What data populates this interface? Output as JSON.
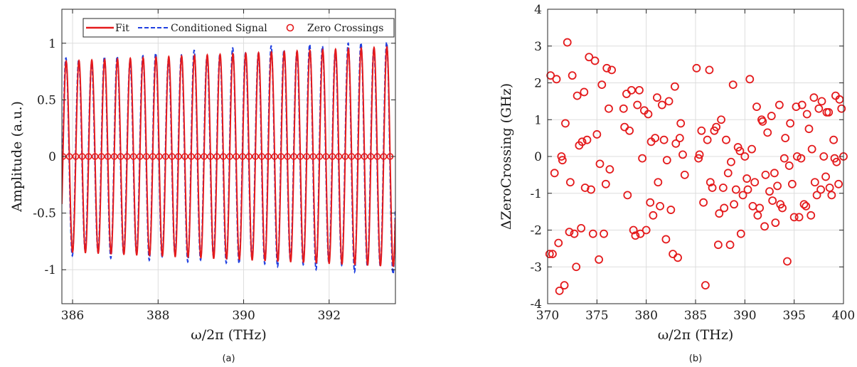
{
  "colors": {
    "fit": "#e41a1c",
    "signal": "#1f3fe0",
    "crossings": "#e41a1c",
    "grid": "#dddddd",
    "axis": "#262626"
  },
  "chart_data": [
    {
      "type": "line",
      "caption": "(a)",
      "xlabel": "ω/2π (THz)",
      "ylabel": "Amplitude (a.u.)",
      "xlim": [
        385.75,
        393.55
      ],
      "ylim": [
        -1.3,
        1.3
      ],
      "xticks": [
        386,
        388,
        390,
        392
      ],
      "xtick_labels": [
        "386",
        "388",
        "390",
        "392"
      ],
      "yticks": [
        -1,
        -0.5,
        0,
        0.5,
        1
      ],
      "ytick_labels": [
        "-1",
        "-0.5",
        "0",
        "0.5",
        "1"
      ],
      "grid": true,
      "legend_position": "top-right",
      "oscillation_period_THz": 0.3,
      "series": [
        {
          "name": "Fit",
          "style": "solid",
          "amplitude_start": 0.84,
          "amplitude_end": 0.97
        },
        {
          "name": "Conditioned Signal",
          "style": "dashed",
          "amplitude_start": 0.84,
          "amplitude_end": 1.0
        },
        {
          "name": "Zero Crossings",
          "style": "markers",
          "y": 0,
          "spacing_THz": 0.15
        }
      ]
    },
    {
      "type": "scatter",
      "caption": "(b)",
      "xlabel": "ω/2π (THz)",
      "ylabel": "ΔZeroCrossing  (GHz)",
      "xlim": [
        370,
        400
      ],
      "ylim": [
        -4,
        4
      ],
      "xticks": [
        370,
        375,
        380,
        385,
        390,
        395,
        400
      ],
      "xtick_labels": [
        "370",
        "375",
        "380",
        "385",
        "390",
        "395",
        "400"
      ],
      "yticks": [
        -4,
        -3,
        -2,
        -1,
        0,
        1,
        2,
        3,
        4
      ],
      "ytick_labels": [
        "-4",
        "-3",
        "-2",
        "-1",
        "0",
        "1",
        "2",
        "3",
        "4"
      ],
      "grid": true,
      "points": [
        [
          370.2,
          -2.65
        ],
        [
          370.3,
          2.2
        ],
        [
          370.5,
          -2.65
        ],
        [
          370.7,
          -0.45
        ],
        [
          370.9,
          2.1
        ],
        [
          371.1,
          -2.35
        ],
        [
          371.2,
          -3.65
        ],
        [
          371.4,
          0.0
        ],
        [
          371.5,
          -0.1
        ],
        [
          371.7,
          -3.5
        ],
        [
          371.8,
          0.9
        ],
        [
          372.0,
          3.1
        ],
        [
          372.2,
          -2.05
        ],
        [
          372.3,
          -0.7
        ],
        [
          372.5,
          2.2
        ],
        [
          372.7,
          -2.1
        ],
        [
          372.9,
          -3.0
        ],
        [
          373.0,
          1.65
        ],
        [
          373.2,
          0.3
        ],
        [
          373.4,
          -1.95
        ],
        [
          373.5,
          0.4
        ],
        [
          373.7,
          1.75
        ],
        [
          373.8,
          -0.85
        ],
        [
          374.0,
          0.45
        ],
        [
          374.2,
          2.7
        ],
        [
          374.4,
          -0.9
        ],
        [
          374.6,
          -2.1
        ],
        [
          374.8,
          2.6
        ],
        [
          375.0,
          0.6
        ],
        [
          375.2,
          -2.8
        ],
        [
          375.3,
          -0.2
        ],
        [
          375.5,
          1.95
        ],
        [
          375.7,
          -2.1
        ],
        [
          375.9,
          -0.75
        ],
        [
          376.0,
          2.4
        ],
        [
          376.2,
          1.3
        ],
        [
          376.3,
          -0.35
        ],
        [
          376.5,
          2.35
        ],
        [
          377.7,
          1.3
        ],
        [
          377.8,
          0.8
        ],
        [
          378.0,
          1.7
        ],
        [
          378.1,
          -1.05
        ],
        [
          378.3,
          0.7
        ],
        [
          378.5,
          1.8
        ],
        [
          378.7,
          -2.0
        ],
        [
          378.9,
          -2.15
        ],
        [
          379.1,
          1.4
        ],
        [
          379.3,
          1.8
        ],
        [
          379.4,
          -2.1
        ],
        [
          379.6,
          -0.05
        ],
        [
          379.8,
          1.25
        ],
        [
          380.0,
          -2.0
        ],
        [
          380.2,
          1.15
        ],
        [
          380.4,
          -1.25
        ],
        [
          380.5,
          0.4
        ],
        [
          380.7,
          -1.6
        ],
        [
          380.9,
          0.5
        ],
        [
          381.1,
          1.6
        ],
        [
          381.2,
          -0.7
        ],
        [
          381.4,
          -1.35
        ],
        [
          381.6,
          1.4
        ],
        [
          381.8,
          0.45
        ],
        [
          382.0,
          -2.25
        ],
        [
          382.1,
          -0.1
        ],
        [
          382.3,
          1.5
        ],
        [
          382.5,
          -1.45
        ],
        [
          382.7,
          -2.65
        ],
        [
          382.9,
          1.9
        ],
        [
          383.0,
          0.35
        ],
        [
          383.2,
          -2.75
        ],
        [
          383.4,
          0.5
        ],
        [
          383.5,
          0.9
        ],
        [
          383.7,
          0.05
        ],
        [
          383.9,
          -0.5
        ],
        [
          385.1,
          2.4
        ],
        [
          385.3,
          -0.05
        ],
        [
          385.4,
          0.05
        ],
        [
          385.6,
          0.7
        ],
        [
          385.8,
          -1.25
        ],
        [
          386.0,
          -3.5
        ],
        [
          386.2,
          0.45
        ],
        [
          386.4,
          2.35
        ],
        [
          386.5,
          -0.7
        ],
        [
          386.7,
          -0.85
        ],
        [
          386.9,
          0.7
        ],
        [
          387.1,
          0.8
        ],
        [
          387.3,
          -2.4
        ],
        [
          387.4,
          -1.55
        ],
        [
          387.6,
          1.0
        ],
        [
          387.8,
          -0.85
        ],
        [
          387.9,
          -1.4
        ],
        [
          388.1,
          0.45
        ],
        [
          388.3,
          -0.45
        ],
        [
          388.5,
          -2.4
        ],
        [
          388.6,
          -0.15
        ],
        [
          388.8,
          1.95
        ],
        [
          388.9,
          -1.3
        ],
        [
          389.1,
          -0.9
        ],
        [
          389.3,
          0.25
        ],
        [
          389.5,
          0.15
        ],
        [
          389.6,
          -2.1
        ],
        [
          389.8,
          -1.05
        ],
        [
          390.0,
          0.0
        ],
        [
          390.2,
          -0.6
        ],
        [
          390.3,
          -0.9
        ],
        [
          390.5,
          2.1
        ],
        [
          390.7,
          0.2
        ],
        [
          390.8,
          -1.35
        ],
        [
          391.0,
          -0.7
        ],
        [
          391.2,
          1.35
        ],
        [
          391.3,
          -1.6
        ],
        [
          391.5,
          -1.4
        ],
        [
          391.7,
          1.0
        ],
        [
          391.8,
          0.95
        ],
        [
          392.0,
          -1.9
        ],
        [
          392.1,
          -0.5
        ],
        [
          392.3,
          0.65
        ],
        [
          392.5,
          -0.95
        ],
        [
          392.7,
          1.1
        ],
        [
          392.8,
          -1.2
        ],
        [
          393.0,
          -0.45
        ],
        [
          393.1,
          -1.8
        ],
        [
          393.3,
          -0.8
        ],
        [
          393.5,
          1.4
        ],
        [
          393.6,
          -1.3
        ],
        [
          393.8,
          -1.4
        ],
        [
          394.0,
          -0.05
        ],
        [
          394.1,
          0.5
        ],
        [
          394.3,
          -2.85
        ],
        [
          394.5,
          -0.25
        ],
        [
          394.6,
          0.9
        ],
        [
          394.8,
          -0.75
        ],
        [
          395.0,
          -1.65
        ],
        [
          395.2,
          1.35
        ],
        [
          395.3,
          0.0
        ],
        [
          395.5,
          -1.65
        ],
        [
          395.7,
          -0.05
        ],
        [
          395.8,
          1.4
        ],
        [
          396.0,
          -1.3
        ],
        [
          396.2,
          -1.35
        ],
        [
          396.3,
          1.15
        ],
        [
          396.5,
          0.75
        ],
        [
          396.7,
          -1.6
        ],
        [
          396.8,
          0.2
        ],
        [
          397.0,
          1.6
        ],
        [
          397.1,
          -0.7
        ],
        [
          397.3,
          -1.05
        ],
        [
          397.5,
          1.3
        ],
        [
          397.7,
          -0.9
        ],
        [
          397.8,
          1.5
        ],
        [
          398.0,
          0.0
        ],
        [
          398.2,
          -0.55
        ],
        [
          398.3,
          1.2
        ],
        [
          398.5,
          1.2
        ],
        [
          398.6,
          -0.85
        ],
        [
          398.8,
          -1.05
        ],
        [
          399.0,
          0.45
        ],
        [
          399.1,
          -0.05
        ],
        [
          399.2,
          1.65
        ],
        [
          399.3,
          -0.15
        ],
        [
          399.5,
          -0.75
        ],
        [
          399.6,
          1.55
        ],
        [
          399.8,
          1.3
        ],
        [
          400.0,
          0.0
        ]
      ]
    }
  ]
}
